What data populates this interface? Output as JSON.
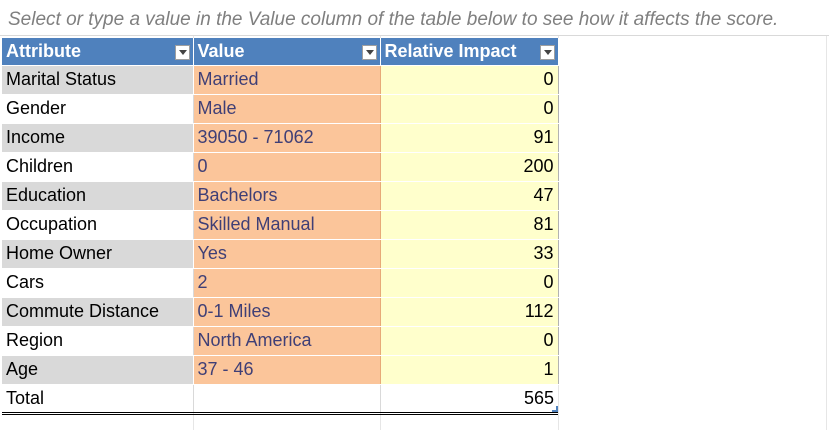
{
  "instructions": "Select or type a value in the Value column of the table below to see how it affects the score.",
  "table": {
    "headers": [
      "Attribute",
      "Value",
      "Relative Impact"
    ],
    "rows": [
      {
        "attribute": "Marital Status",
        "value": "Married",
        "impact": "0"
      },
      {
        "attribute": "Gender",
        "value": "Male",
        "impact": "0"
      },
      {
        "attribute": "Income",
        "value": "39050 - 71062",
        "impact": "91"
      },
      {
        "attribute": "Children",
        "value": "0",
        "impact": "200"
      },
      {
        "attribute": "Education",
        "value": "Bachelors",
        "impact": "47"
      },
      {
        "attribute": "Occupation",
        "value": "Skilled Manual",
        "impact": "81"
      },
      {
        "attribute": "Home Owner",
        "value": "Yes",
        "impact": "33"
      },
      {
        "attribute": "Cars",
        "value": "2",
        "impact": "0"
      },
      {
        "attribute": "Commute Distance",
        "value": "0-1 Miles",
        "impact": "112"
      },
      {
        "attribute": "Region",
        "value": "North America",
        "impact": "0"
      },
      {
        "attribute": "Age",
        "value": "37 - 46",
        "impact": "1"
      }
    ],
    "total": {
      "label": "Total",
      "value": "",
      "impact": "565"
    }
  },
  "colors": {
    "header_bg": "#4f81bd",
    "value_bg": "#fbc59a",
    "impact_bg": "#ffffcc",
    "attribute_band": "#d9d9d9"
  }
}
